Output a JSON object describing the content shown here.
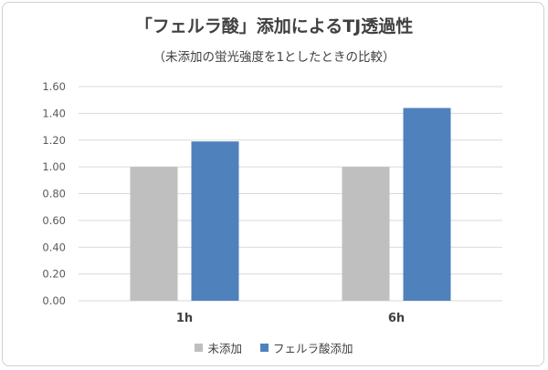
{
  "chart_data": {
    "type": "bar",
    "title": "「フェルラ酸」添加によるTJ透過性",
    "subtitle": "（未添加の蛍光強度を1としたときの比較）",
    "categories": [
      "1h",
      "6h"
    ],
    "series": [
      {
        "name": "未添加",
        "values": [
          1.0,
          1.0
        ],
        "color": "#bfbfbf"
      },
      {
        "name": "フェルラ酸添加",
        "values": [
          1.19,
          1.44
        ],
        "color": "#4f81bd"
      }
    ],
    "ylim": [
      0,
      1.6
    ],
    "yticks": [
      "0.00",
      "0.20",
      "0.40",
      "0.60",
      "0.80",
      "1.00",
      "1.20",
      "1.40",
      "1.60"
    ],
    "grid": true,
    "legend": "bottom"
  }
}
